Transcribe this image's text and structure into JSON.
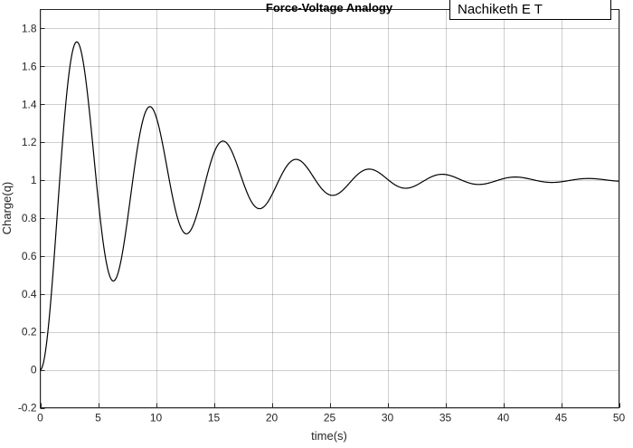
{
  "chart_data": {
    "type": "line",
    "title": "Force-Voltage Analogy",
    "xlabel": "time(s)",
    "ylabel": "Charge(q)",
    "xlim": [
      0,
      50
    ],
    "ylim": [
      -0.2,
      1.9
    ],
    "xticks": [
      0,
      5,
      10,
      15,
      20,
      25,
      30,
      35,
      40,
      45,
      50
    ],
    "yticks": [
      -0.2,
      0,
      0.2,
      0.4,
      0.6,
      0.8,
      1,
      1.2,
      1.4,
      1.6,
      1.8
    ],
    "grid": true,
    "annotation": "Nachiketh E T",
    "series": [
      {
        "color": "#000000",
        "step_response": {
          "final_value": 1.0,
          "zeta": 0.1,
          "omega_n": 1.0
        },
        "x": [
          0,
          1.5,
          3.16,
          6.32,
          9.48,
          12.64,
          15.8,
          18.96,
          22.12,
          25.28,
          28.44,
          31.6,
          34.76,
          37.92,
          41.08,
          44.24,
          47.4,
          50
        ],
        "y": [
          0.0,
          0.84,
          1.73,
          0.47,
          1.39,
          0.72,
          1.2,
          0.85,
          1.11,
          0.92,
          1.06,
          0.96,
          1.03,
          0.98,
          1.015,
          0.99,
          1.007,
          0.998
        ]
      }
    ]
  }
}
